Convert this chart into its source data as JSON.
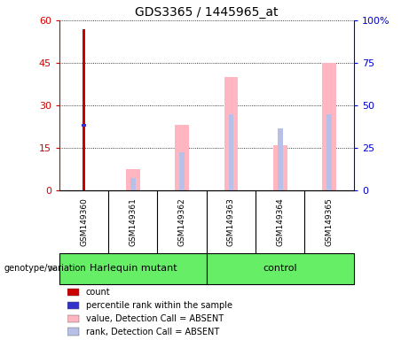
{
  "title": "GDS3365 / 1445965_at",
  "samples": [
    "GSM149360",
    "GSM149361",
    "GSM149362",
    "GSM149363",
    "GSM149364",
    "GSM149365"
  ],
  "ylim_left": [
    0,
    60
  ],
  "ylim_right": [
    0,
    100
  ],
  "yticks_left": [
    0,
    15,
    30,
    45,
    60
  ],
  "ytick_labels_left": [
    "0",
    "15",
    "30",
    "45",
    "60"
  ],
  "yticks_right": [
    0,
    25,
    50,
    75,
    100
  ],
  "ytick_labels_right": [
    "0",
    "25",
    "50",
    "75",
    "100%"
  ],
  "count_values": [
    57,
    0,
    0,
    0,
    0,
    0
  ],
  "count_color": "#cc0000",
  "percentile_values": [
    23,
    0,
    0,
    0,
    0,
    0
  ],
  "percentile_color": "#3333cc",
  "absent_value_values": [
    0,
    7.5,
    23,
    40,
    16,
    45
  ],
  "absent_value_color": "#ffb6c1",
  "absent_rank_values": [
    0,
    4.5,
    13.5,
    27,
    22,
    27
  ],
  "absent_rank_color": "#b8c0e8",
  "left_axis_color": "#cc0000",
  "right_axis_color": "#0000cc",
  "group_label": "genotype/variation",
  "harlequin_label": "Harlequin mutant",
  "control_label": "control",
  "group_bg": "#66ee66",
  "sample_bg": "#d0d0d0",
  "legend_items": [
    [
      "#cc0000",
      "count"
    ],
    [
      "#3333cc",
      "percentile rank within the sample"
    ],
    [
      "#ffb6c1",
      "value, Detection Call = ABSENT"
    ],
    [
      "#b8c0e8",
      "rank, Detection Call = ABSENT"
    ]
  ]
}
